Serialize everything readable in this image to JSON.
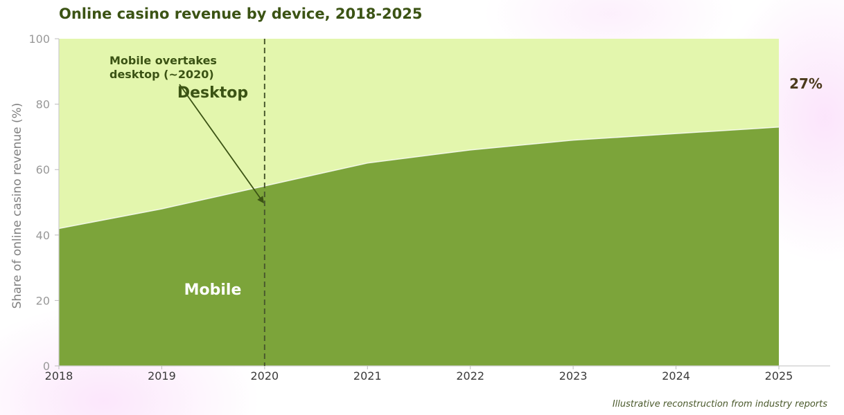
{
  "chart_data": {
    "type": "area",
    "stacked": true,
    "title": "Online casino revenue by device, 2018-2025",
    "xlabel": "",
    "ylabel": "Share of online casino revenue (%)",
    "x": [
      2018,
      2019,
      2020,
      2021,
      2022,
      2023,
      2024,
      2025
    ],
    "xlim": [
      2018,
      2025
    ],
    "ylim": [
      0,
      100
    ],
    "yticks": [
      0,
      20,
      40,
      60,
      80,
      100
    ],
    "grid": false,
    "series": [
      {
        "name": "Mobile",
        "values": [
          42,
          48,
          55,
          62,
          66,
          69,
          71,
          73
        ],
        "color": "#7ca43a"
      },
      {
        "name": "Desktop",
        "values": [
          58,
          52,
          45,
          38,
          34,
          31,
          29,
          27
        ],
        "color": "#e3f6ad"
      }
    ],
    "annotations": [
      {
        "text_lines": [
          "Mobile overtakes",
          "desktop (~2020)"
        ],
        "arrow_to": [
          2020,
          50
        ]
      }
    ],
    "reference_line": {
      "x": 2020,
      "style": "dashed"
    },
    "end_label": "27%"
  },
  "caption": "Illustrative reconstruction from industry reports",
  "colors": {
    "mobile": "#7ca43a",
    "desktop": "#e3f6ad",
    "annotation": "#3b5314",
    "axis": "#cccccc"
  }
}
